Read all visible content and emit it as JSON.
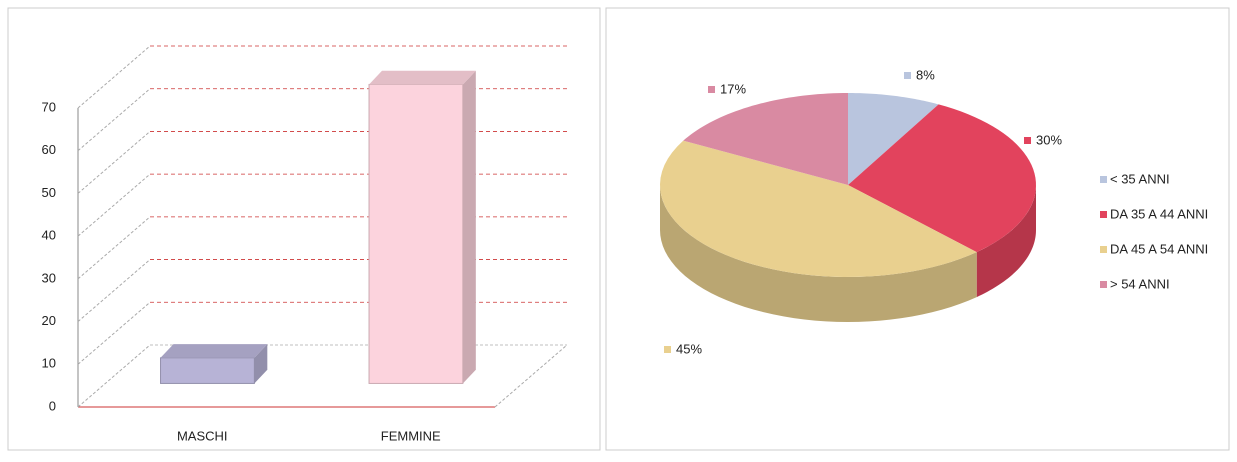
{
  "chart_data": [
    {
      "type": "bar3d",
      "categories": [
        "MASCHI",
        "FEMMINE"
      ],
      "series": [
        {
          "colors": [
            "#b7b3d6",
            "#fcd3dd"
          ],
          "values": [
            6,
            70
          ]
        }
      ],
      "ylim": [
        0,
        70
      ],
      "yticks": [
        0,
        10,
        20,
        30,
        40,
        50,
        60,
        70
      ],
      "grid": true
    },
    {
      "type": "pie3d",
      "categories": [
        "< 35 ANNI",
        "DA 35 A 44 ANNI",
        "DA 45 A 54 ANNI",
        "> 54 ANNI"
      ],
      "values": [
        8,
        30,
        45,
        17
      ],
      "value_labels": [
        "8%",
        "30%",
        "45%",
        "17%"
      ],
      "colors": [
        "#b9c5de",
        "#e2435d",
        "#e9d08f",
        "#d98aa2"
      ],
      "legend": "right"
    }
  ]
}
